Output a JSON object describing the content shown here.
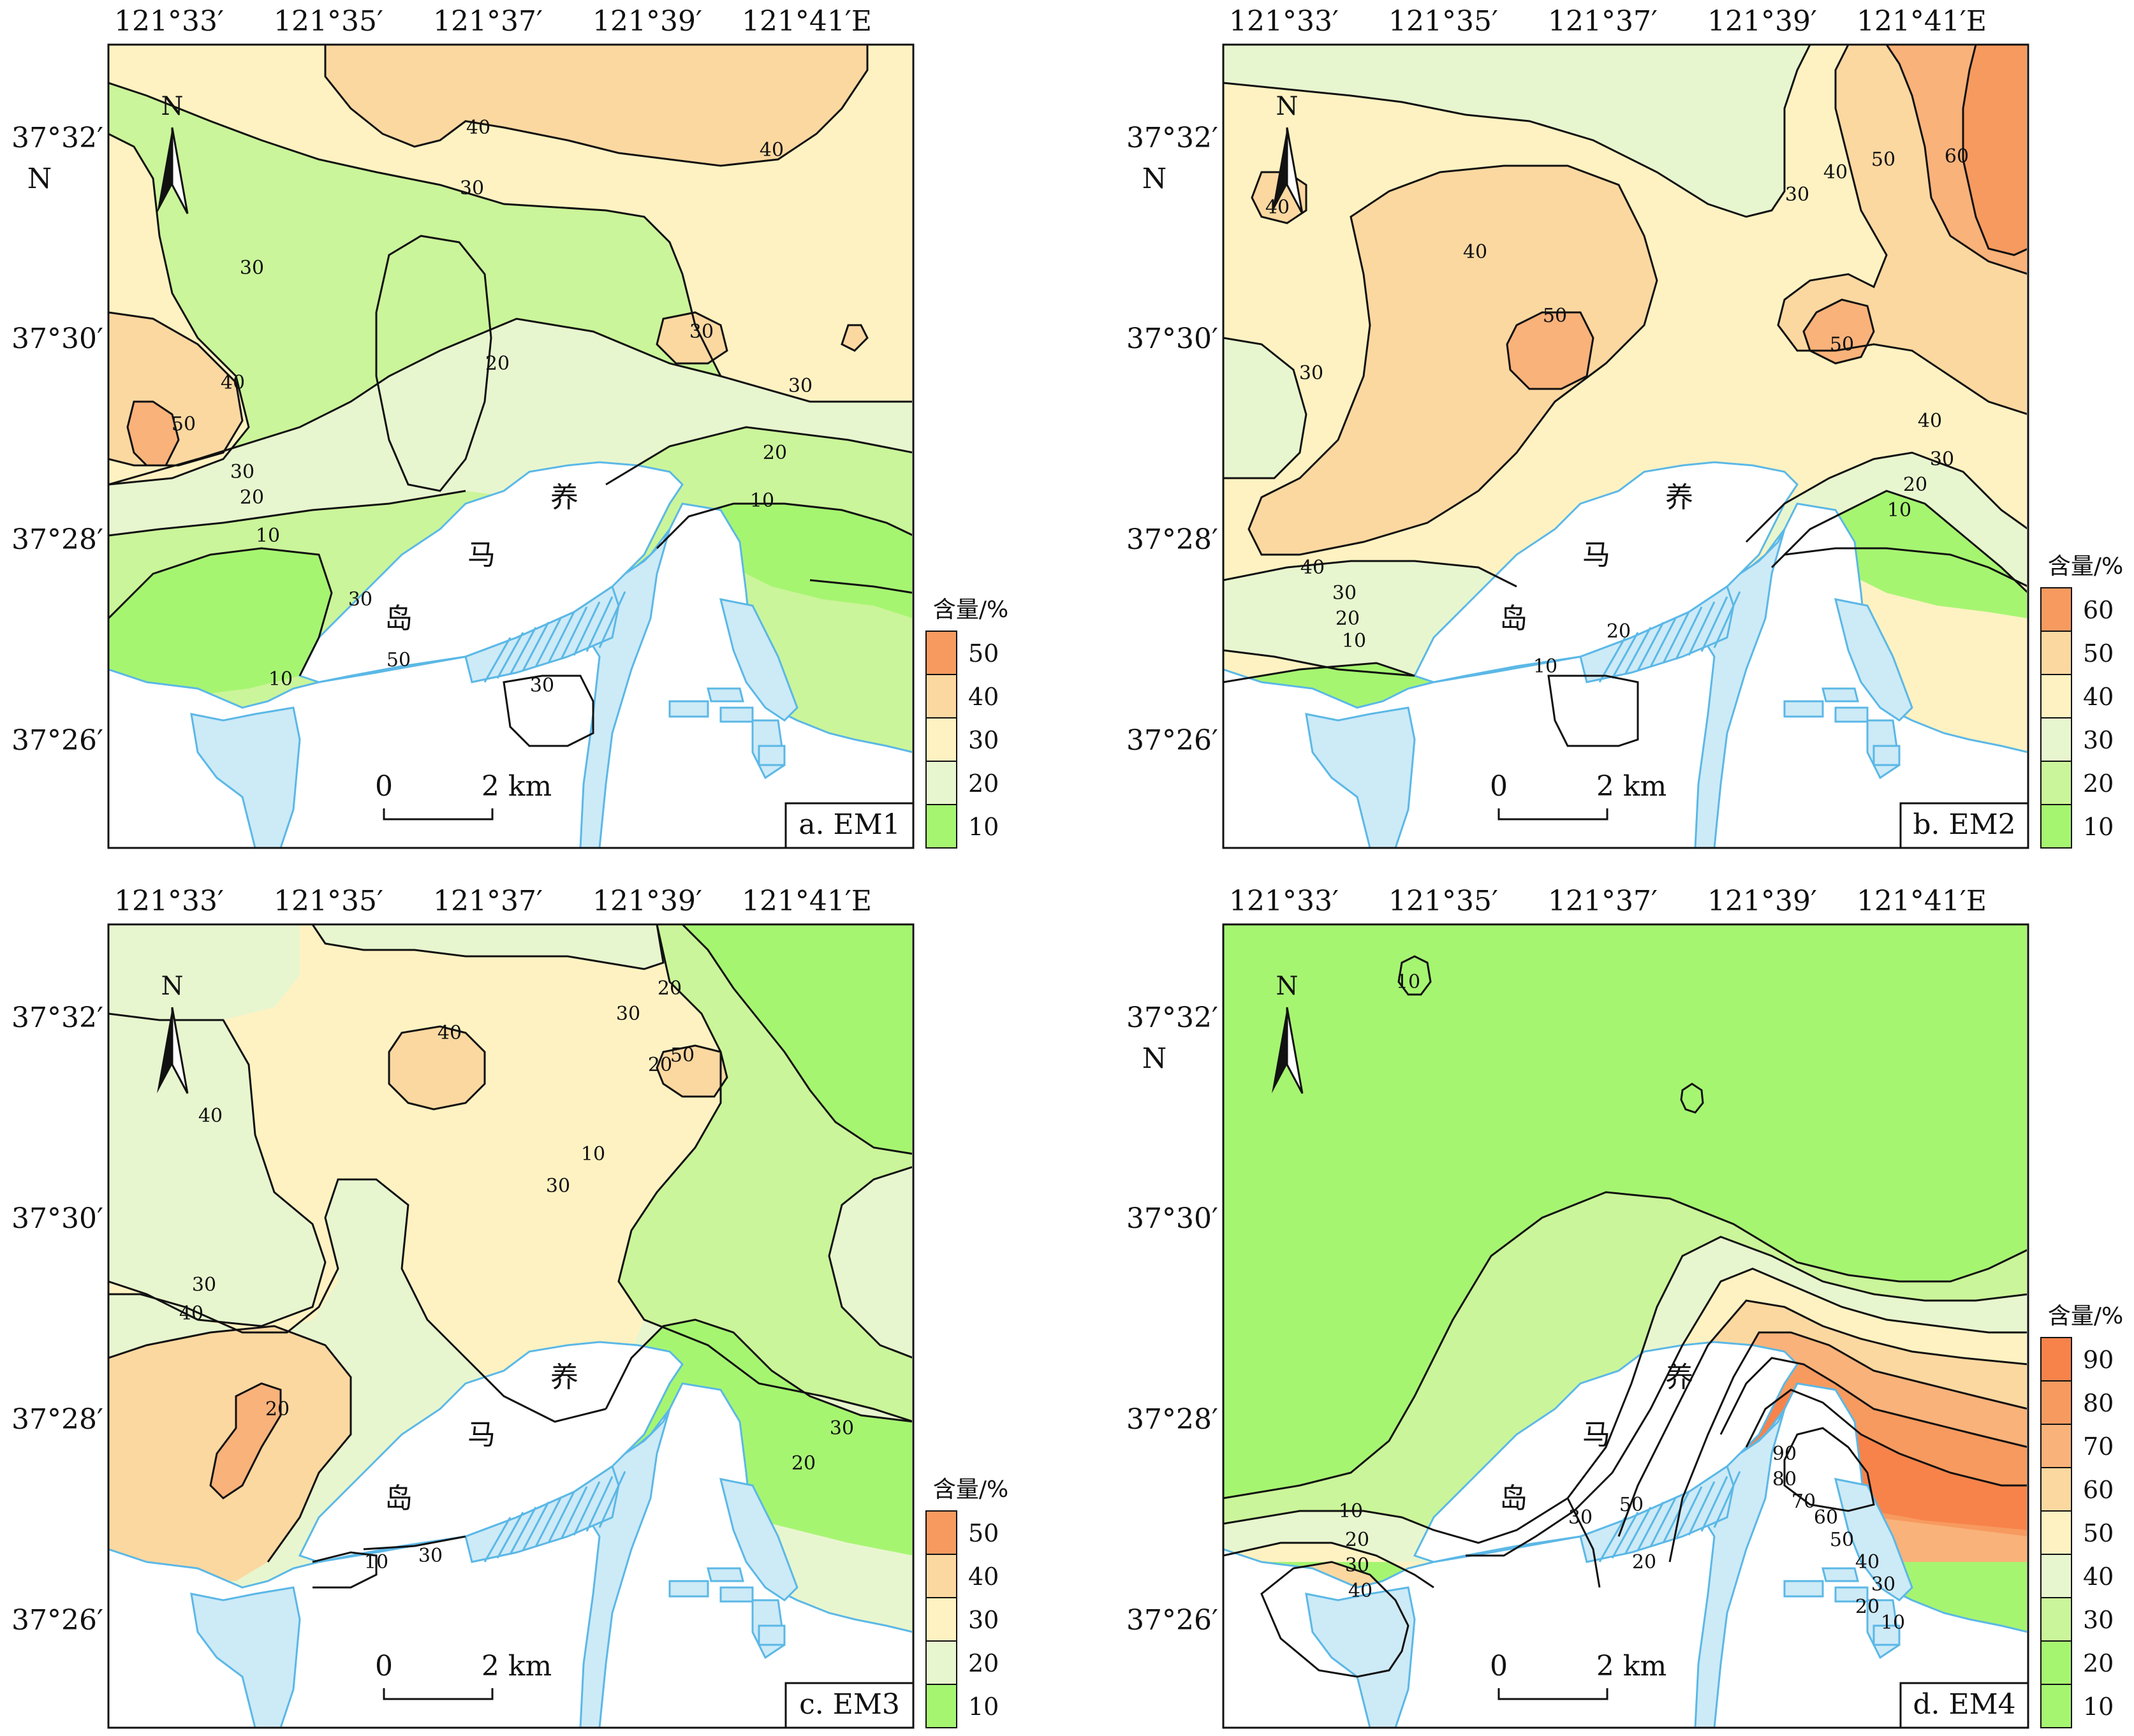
{
  "coords": {
    "lon_ticks": [
      "121°33′",
      "121°35′",
      "121°37′",
      "121°39′",
      "121°41′E"
    ],
    "lat_ticks": [
      "37°32′",
      "37°30′",
      "37°28′",
      "37°26′"
    ],
    "lat_unit": "N"
  },
  "place": {
    "chars": [
      "养",
      "马",
      "岛"
    ]
  },
  "north_label": "N",
  "scale": {
    "zero": "0",
    "dist": "2 km"
  },
  "legend_title": "含量/%",
  "colors": {
    "c0": "#a6f571",
    "c10": "#cbf59a",
    "c20": "#e8f6cf",
    "c30": "#fff2c2",
    "c40": "#fcd8a1",
    "c50": "#f9b27a",
    "c60": "#f79a5f",
    "c70": "#f7834a",
    "water": "#cdeaf7",
    "water_edge": "#5bb8e6",
    "line": "#111111"
  },
  "panels": [
    {
      "id": "a",
      "title": "a. EM1",
      "legend": [
        "50",
        "40",
        "30",
        "20",
        "10"
      ],
      "contour_labels": [
        "40",
        "40",
        "30",
        "30",
        "30",
        "20",
        "30",
        "40",
        "50",
        "30",
        "20",
        "10",
        "20",
        "10",
        "10",
        "30",
        "50",
        "30"
      ]
    },
    {
      "id": "b",
      "title": "b. EM2",
      "legend": [
        "60",
        "50",
        "40",
        "30",
        "20",
        "10"
      ],
      "contour_labels": [
        "40",
        "40",
        "50",
        "30",
        "30",
        "40",
        "50",
        "60",
        "50",
        "40",
        "30",
        "20",
        "10",
        "40",
        "30",
        "20",
        "10",
        "10",
        "20"
      ]
    },
    {
      "id": "c",
      "title": "c. EM3",
      "legend": [
        "50",
        "40",
        "30",
        "20",
        "10"
      ],
      "contour_labels": [
        "40",
        "30",
        "40",
        "20",
        "10",
        "30",
        "30",
        "20",
        "20",
        "10",
        "30",
        "40",
        "50",
        "30",
        "20"
      ]
    },
    {
      "id": "d",
      "title": "d. EM4",
      "legend": [
        "90",
        "80",
        "70",
        "60",
        "50",
        "40",
        "30",
        "20",
        "10"
      ],
      "contour_labels": [
        "10",
        "10",
        "20",
        "30",
        "40",
        "50",
        "60",
        "70",
        "80",
        "90",
        "10",
        "20",
        "30",
        "40",
        "30",
        "50",
        "20"
      ]
    }
  ]
}
